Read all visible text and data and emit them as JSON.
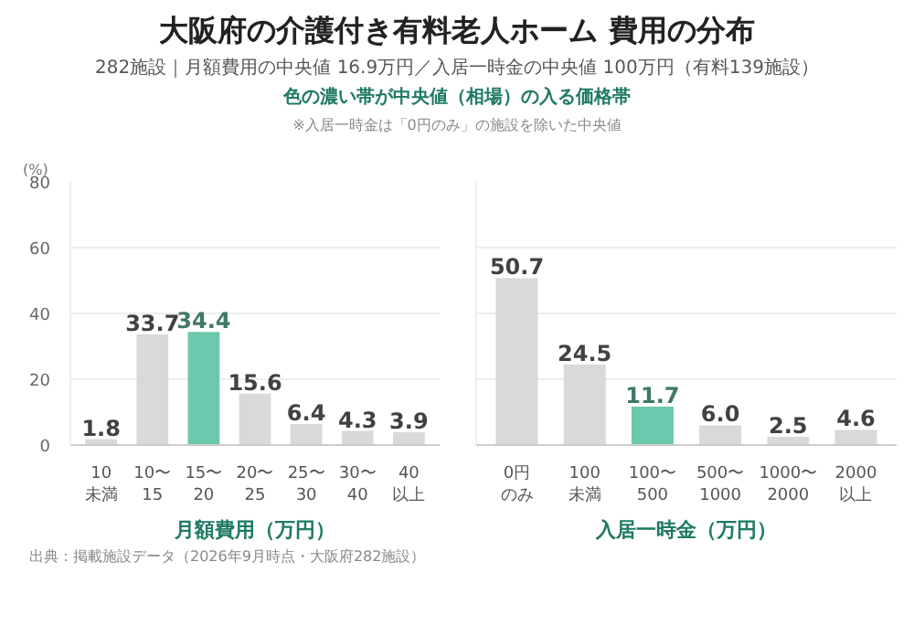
{
  "chart_data": [
    {
      "type": "bar",
      "title": "大阪府の介護付き有料老人ホーム 費用の分布",
      "subtitle": "282施設｜月額費用の中央値 16.9万円／入居一時金の中央値 100万円（有料139施設）",
      "annotations": [
        "色の濃い帯が中央値（相場）の入る価格帯",
        "※入居一時金は「0円のみ」の施設を除いた中央値",
        "出典：掲載施設データ（2026年9月時点・大阪府282施設）"
      ],
      "categories": [
        "10未満",
        "10〜15",
        "15〜20",
        "20〜25",
        "25〜30",
        "30〜40",
        "40以上"
      ],
      "values": [
        1.8,
        33.7,
        34.4,
        15.6,
        6.4,
        4.3,
        3.9
      ],
      "colors": [
        "#d9d9d9",
        "#d9d9d9",
        "#6cc9ad",
        "#d9d9d9",
        "#d9d9d9",
        "#d9d9d9",
        "#d9d9d9"
      ],
      "xlabel": "月額費用（万円）",
      "ylabel": "(%)",
      "ylim": [
        0,
        80
      ],
      "yticks": [
        0,
        20,
        40,
        60,
        80
      ],
      "grid": "y",
      "data_labels": true
    },
    {
      "type": "bar",
      "categories": [
        "0円のみ",
        "100未満",
        "100〜500",
        "500〜1000",
        "1000〜2000",
        "2000以上"
      ],
      "values": [
        50.7,
        24.5,
        11.7,
        6.0,
        2.5,
        4.6
      ],
      "value_labels": [
        "50.7",
        "24.5",
        "11.7",
        "6.0",
        "2.5",
        "4.6"
      ],
      "colors": [
        "#d9d9d9",
        "#d9d9d9",
        "#6cc9ad",
        "#d9d9d9",
        "#d9d9d9",
        "#d9d9d9"
      ],
      "xlabel": "入居一時金（万円）",
      "ylim": [
        0,
        80
      ],
      "yticks": [
        0,
        20,
        40,
        60,
        80
      ],
      "grid": "y",
      "data_labels": true,
      "tick_labels": "x"
    }
  ]
}
